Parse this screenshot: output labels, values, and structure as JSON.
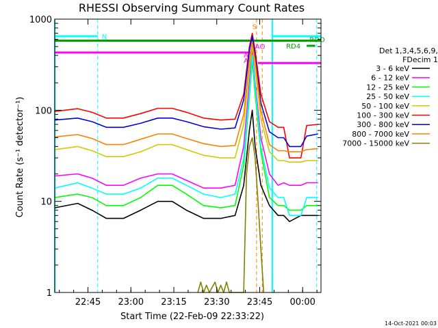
{
  "chart_data": {
    "type": "line",
    "title": "RHESSI Observing Summary Count Rates",
    "xlabel": "Start Time (22-Feb-09 22:33:22)",
    "ylabel": "Count Rate (s⁻¹ detector⁻¹)",
    "y_scale": "log",
    "ylim": [
      1,
      1000
    ],
    "xlim_minutes": [
      0,
      93
    ],
    "x_ticks": [
      {
        "label": "22:45",
        "minute": 11.6
      },
      {
        "label": "23:00",
        "minute": 26.6
      },
      {
        "label": "23:15",
        "minute": 41.6
      },
      {
        "label": "23:30",
        "minute": 56.6
      },
      {
        "label": "23:45",
        "minute": 71.6
      },
      {
        "label": "00:00",
        "minute": 86.6
      }
    ],
    "y_ticks": [
      {
        "label": "1",
        "value": 1
      },
      {
        "label": "10",
        "value": 10
      },
      {
        "label": "100",
        "value": 100
      },
      {
        "label": "1000",
        "value": 1000
      }
    ],
    "legend_header": [
      "Det 1,3,4,5,6,9,",
      "FDecim 1"
    ],
    "legend_position": "right",
    "series": [
      {
        "name": "3 - 6 keV",
        "color": "#000000",
        "points": [
          [
            0,
            8.5
          ],
          [
            8,
            9.5
          ],
          [
            13,
            8
          ],
          [
            18,
            6.5
          ],
          [
            24,
            6.5
          ],
          [
            30,
            8
          ],
          [
            36,
            10
          ],
          [
            41,
            10
          ],
          [
            46,
            8
          ],
          [
            52,
            6.5
          ],
          [
            58,
            6.5
          ],
          [
            63,
            7
          ],
          [
            66,
            15
          ],
          [
            68,
            60
          ],
          [
            69,
            100
          ],
          [
            70,
            40
          ],
          [
            72,
            15
          ],
          [
            75,
            9
          ],
          [
            78,
            7
          ],
          [
            80,
            7
          ],
          [
            82,
            6
          ],
          [
            86,
            7
          ],
          [
            88,
            7
          ],
          [
            92,
            7
          ]
        ]
      },
      {
        "name": "6 - 12 keV",
        "color": "#ff00ff",
        "points": [
          [
            0,
            19
          ],
          [
            8,
            20
          ],
          [
            13,
            18
          ],
          [
            18,
            15
          ],
          [
            24,
            15
          ],
          [
            30,
            18
          ],
          [
            36,
            20
          ],
          [
            41,
            20
          ],
          [
            46,
            17
          ],
          [
            52,
            14
          ],
          [
            58,
            14
          ],
          [
            63,
            15
          ],
          [
            66,
            40
          ],
          [
            68,
            200
          ],
          [
            69,
            460
          ],
          [
            70,
            200
          ],
          [
            72,
            50
          ],
          [
            75,
            20
          ],
          [
            78,
            15
          ],
          [
            80,
            16
          ],
          [
            82,
            15
          ],
          [
            86,
            15
          ],
          [
            88,
            16
          ],
          [
            92,
            16
          ]
        ]
      },
      {
        "name": "12 - 25 keV",
        "color": "#00ff00",
        "points": [
          [
            0,
            11
          ],
          [
            8,
            12
          ],
          [
            13,
            11
          ],
          [
            18,
            9
          ],
          [
            24,
            9
          ],
          [
            30,
            11
          ],
          [
            36,
            15
          ],
          [
            41,
            15
          ],
          [
            46,
            12
          ],
          [
            52,
            9
          ],
          [
            58,
            8.5
          ],
          [
            63,
            9
          ],
          [
            66,
            25
          ],
          [
            68,
            140
          ],
          [
            69,
            350
          ],
          [
            70,
            150
          ],
          [
            72,
            35
          ],
          [
            75,
            11
          ],
          [
            78,
            9
          ],
          [
            80,
            9
          ],
          [
            82,
            8
          ],
          [
            86,
            8
          ],
          [
            88,
            9
          ],
          [
            92,
            9
          ]
        ]
      },
      {
        "name": "25 - 50 keV",
        "color": "#00ffff",
        "points": [
          [
            0,
            14
          ],
          [
            8,
            16
          ],
          [
            13,
            14
          ],
          [
            18,
            12
          ],
          [
            24,
            12
          ],
          [
            30,
            14
          ],
          [
            36,
            18
          ],
          [
            41,
            18
          ],
          [
            46,
            15
          ],
          [
            52,
            12
          ],
          [
            58,
            11
          ],
          [
            63,
            12
          ],
          [
            66,
            30
          ],
          [
            68,
            160
          ],
          [
            69,
            400
          ],
          [
            70,
            180
          ],
          [
            72,
            40
          ],
          [
            75,
            14
          ],
          [
            78,
            11
          ],
          [
            80,
            11
          ],
          [
            82,
            7
          ],
          [
            86,
            7
          ],
          [
            88,
            11
          ],
          [
            92,
            11
          ]
        ]
      },
      {
        "name": "50 - 100 keV",
        "color": "#cccc00",
        "points": [
          [
            0,
            37
          ],
          [
            8,
            40
          ],
          [
            13,
            36
          ],
          [
            18,
            31
          ],
          [
            24,
            31
          ],
          [
            30,
            35
          ],
          [
            36,
            42
          ],
          [
            41,
            42
          ],
          [
            46,
            37
          ],
          [
            52,
            32
          ],
          [
            58,
            30
          ],
          [
            63,
            30
          ],
          [
            66,
            70
          ],
          [
            68,
            280
          ],
          [
            69,
            500
          ],
          [
            70,
            300
          ],
          [
            72,
            80
          ],
          [
            75,
            35
          ],
          [
            78,
            28
          ],
          [
            80,
            28
          ],
          [
            82,
            27
          ],
          [
            86,
            27
          ],
          [
            88,
            28
          ],
          [
            92,
            28
          ]
        ]
      },
      {
        "name": "100 - 300 keV",
        "color": "#ff0000",
        "points": [
          [
            0,
            97
          ],
          [
            8,
            104
          ],
          [
            13,
            95
          ],
          [
            18,
            82
          ],
          [
            24,
            82
          ],
          [
            30,
            92
          ],
          [
            36,
            105
          ],
          [
            41,
            105
          ],
          [
            46,
            95
          ],
          [
            52,
            82
          ],
          [
            58,
            78
          ],
          [
            63,
            80
          ],
          [
            66,
            150
          ],
          [
            68,
            500
          ],
          [
            69,
            700
          ],
          [
            70,
            450
          ],
          [
            72,
            150
          ],
          [
            75,
            75
          ],
          [
            78,
            65
          ],
          [
            80,
            65
          ],
          [
            82,
            30
          ],
          [
            86,
            30
          ],
          [
            88,
            68
          ],
          [
            92,
            70
          ]
        ]
      },
      {
        "name": "300 - 800 keV",
        "color": "#0000dd",
        "points": [
          [
            0,
            78
          ],
          [
            8,
            82
          ],
          [
            13,
            75
          ],
          [
            18,
            65
          ],
          [
            24,
            65
          ],
          [
            30,
            72
          ],
          [
            36,
            82
          ],
          [
            41,
            82
          ],
          [
            46,
            75
          ],
          [
            52,
            66
          ],
          [
            58,
            62
          ],
          [
            63,
            64
          ],
          [
            66,
            130
          ],
          [
            68,
            450
          ],
          [
            69,
            650
          ],
          [
            70,
            400
          ],
          [
            72,
            120
          ],
          [
            75,
            58
          ],
          [
            78,
            50
          ],
          [
            80,
            50
          ],
          [
            82,
            40
          ],
          [
            86,
            40
          ],
          [
            88,
            52
          ],
          [
            92,
            55
          ]
        ]
      },
      {
        "name": "800 - 7000 keV",
        "color": "#ff8000",
        "points": [
          [
            0,
            51
          ],
          [
            8,
            54
          ],
          [
            13,
            49
          ],
          [
            18,
            42
          ],
          [
            24,
            42
          ],
          [
            30,
            48
          ],
          [
            36,
            55
          ],
          [
            41,
            55
          ],
          [
            46,
            49
          ],
          [
            52,
            43
          ],
          [
            58,
            40
          ],
          [
            63,
            41
          ],
          [
            66,
            90
          ],
          [
            68,
            350
          ],
          [
            69,
            550
          ],
          [
            70,
            350
          ],
          [
            72,
            100
          ],
          [
            75,
            42
          ],
          [
            78,
            36
          ],
          [
            80,
            36
          ],
          [
            82,
            35
          ],
          [
            86,
            35
          ],
          [
            88,
            37
          ],
          [
            92,
            38
          ]
        ]
      },
      {
        "name": "7000 - 15000 keV",
        "color": "#808000",
        "points": [
          [
            50,
            1
          ],
          [
            51,
            1.3
          ],
          [
            52,
            1
          ],
          [
            53,
            1.2
          ],
          [
            54,
            1
          ],
          [
            56,
            1.3
          ],
          [
            57,
            1
          ],
          [
            58,
            1.2
          ],
          [
            59,
            1
          ],
          [
            60,
            1.3
          ],
          [
            61,
            1
          ],
          [
            66,
            1
          ],
          [
            67,
            20
          ],
          [
            68,
            40
          ],
          [
            69,
            50
          ],
          [
            70,
            30
          ],
          [
            71,
            10
          ],
          [
            72,
            3
          ],
          [
            73,
            1
          ]
        ]
      }
    ],
    "state_bars": [
      {
        "label": "N",
        "color": "#00ffff",
        "value": 650,
        "from": 0,
        "to": 15
      },
      {
        "label": "",
        "color": "#00ffff",
        "value": 650,
        "from": 76,
        "to": 93
      },
      {
        "label": "",
        "color": "#00a000",
        "value": 580,
        "from": 0,
        "to": 93
      },
      {
        "label": "RD4",
        "color": "#00a000",
        "value": 510,
        "from": 88,
        "to": 91
      },
      {
        "label": "",
        "color": "#ff00ff",
        "value": 430,
        "from": 0,
        "to": 69
      },
      {
        "label": "",
        "color": "#ff00ff",
        "value": 330,
        "from": 71,
        "to": 93
      }
    ],
    "flag_labels": [
      {
        "text": "S",
        "color": "#ff8000",
        "minute": 69,
        "value": 780
      },
      {
        "text": "RDO",
        "color": "#00a000",
        "minute": 89,
        "value": 560
      },
      {
        "text": "AO",
        "color": "#ff00ff",
        "minute": 70,
        "value": 470
      },
      {
        "text": "A1",
        "color": "#ff00ff",
        "minute": 66,
        "value": 380
      },
      {
        "text": "A3",
        "color": "#ff00ff",
        "minute": 66,
        "value": 330
      }
    ],
    "vlines": [
      {
        "minute": 15,
        "color": "#00ffff"
      },
      {
        "minute": 70.5,
        "color": "#ff8000"
      },
      {
        "minute": 72.5,
        "color": "#ff8000"
      },
      {
        "minute": 91.5,
        "color": "#00ffff"
      }
    ],
    "solid_vlines": [
      {
        "minute": 0,
        "color": "#00ffff"
      },
      {
        "minute": 76,
        "color": "#00ffff"
      }
    ],
    "footer": "14-Oct-2021 00:03"
  }
}
